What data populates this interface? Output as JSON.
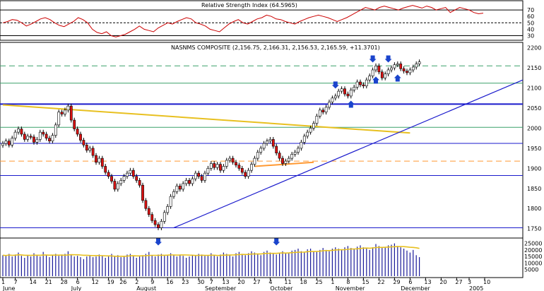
{
  "rsi": {
    "title": "Relative Strength Index (64.5965)",
    "levels": [
      70,
      50,
      30
    ],
    "ticks": [
      70,
      60,
      50,
      40,
      30
    ],
    "values": [
      50,
      52,
      55,
      54,
      50,
      45,
      48,
      52,
      56,
      58,
      55,
      50,
      46,
      44,
      48,
      52,
      58,
      55,
      50,
      40,
      35,
      33,
      36,
      30,
      28,
      30,
      32,
      36,
      40,
      45,
      40,
      38,
      36,
      42,
      46,
      50,
      48,
      52,
      55,
      58,
      56,
      50,
      48,
      45,
      40,
      38,
      36,
      42,
      48,
      52,
      55,
      50,
      48,
      52,
      56,
      58,
      62,
      60,
      56,
      55,
      52,
      50,
      48,
      52,
      55,
      58,
      60,
      62,
      60,
      58,
      55,
      52,
      55,
      58,
      62,
      66,
      70,
      74,
      72,
      70,
      74,
      76,
      74,
      72,
      70,
      73,
      75,
      77,
      75,
      73,
      76,
      74,
      70,
      72,
      74,
      66,
      70,
      74,
      72,
      70,
      66,
      64,
      65
    ]
  },
  "main": {
    "title": "NASNMS COMPOSITE (2,156.75, 2,166.31, 2,156.53, 2,165.59, +11.3701)",
    "ylim": [
      1730,
      2210
    ],
    "ticks": [
      2200,
      2150,
      2100,
      2050,
      2000,
      1950,
      1900,
      1850,
      1800,
      1750
    ],
    "hlines": [
      {
        "value": 2155,
        "color": "#3aa06a",
        "style": "dashed"
      },
      {
        "value": 2112,
        "color": "#3aa06a",
        "style": "solid"
      },
      {
        "value": 2060,
        "color": "#1a1acc",
        "style": "thick"
      },
      {
        "value": 2002,
        "color": "#3aa06a",
        "style": "solid"
      },
      {
        "value": 1962,
        "color": "#1a1acc",
        "style": "solid"
      },
      {
        "value": 1918,
        "color": "#ff9933",
        "style": "dashed"
      },
      {
        "value": 1882,
        "color": "#1a1acc",
        "style": "solid"
      },
      {
        "value": 1752,
        "color": "#1a1acc",
        "style": "solid"
      }
    ],
    "closes": [
      1962,
      1968,
      1958,
      1975,
      1990,
      1998,
      1985,
      1972,
      1980,
      1978,
      1965,
      1972,
      1990,
      1985,
      1975,
      1968,
      1982,
      2008,
      2040,
      2035,
      2045,
      2055,
      2020,
      1998,
      1985,
      1970,
      1958,
      1945,
      1950,
      1932,
      1915,
      1925,
      1905,
      1890,
      1880,
      1868,
      1848,
      1862,
      1870,
      1880,
      1888,
      1895,
      1880,
      1870,
      1858,
      1820,
      1800,
      1785,
      1770,
      1760,
      1752,
      1768,
      1790,
      1805,
      1830,
      1842,
      1856,
      1848,
      1862,
      1870,
      1862,
      1874,
      1888,
      1880,
      1870,
      1888,
      1900,
      1912,
      1902,
      1910,
      1895,
      1905,
      1920,
      1925,
      1915,
      1908,
      1900,
      1890,
      1880,
      1895,
      1910,
      1925,
      1940,
      1950,
      1962,
      1968,
      1972,
      1955,
      1938,
      1925,
      1912,
      1918,
      1925,
      1935,
      1940,
      1950,
      1965,
      1980,
      1990,
      2000,
      2012,
      2030,
      2045,
      2040,
      2052,
      2065,
      2075,
      2080,
      2092,
      2098,
      2085,
      2080,
      2095,
      2102,
      2115,
      2108,
      2105,
      2120,
      2130,
      2145,
      2155,
      2140,
      2125,
      2135,
      2145,
      2150,
      2158,
      2160,
      2148,
      2142,
      2138,
      2145,
      2152,
      2160,
      2165
    ],
    "green_trend": [
      [
        0,
        2058
      ],
      [
        131,
        1988
      ]
    ],
    "orange_short": [
      [
        81,
        1905
      ],
      [
        100,
        1915
      ]
    ],
    "arrows_down": [
      107,
      119,
      124
    ],
    "arrows_up": [
      112,
      120,
      127
    ]
  },
  "volume": {
    "ticks": [
      25000,
      20000,
      15000,
      10000,
      5000
    ],
    "ylim": [
      0,
      28000
    ],
    "values": [
      16000,
      15500,
      17000,
      15000,
      16500,
      18000,
      15500,
      14000,
      16000,
      15000,
      17500,
      16000,
      15000,
      18500,
      16000,
      14500,
      16000,
      17000,
      15500,
      16500,
      17000,
      19000,
      16000,
      15000,
      15500,
      14500,
      13000,
      15000,
      16000,
      14500,
      15000,
      16500,
      15500,
      14000,
      15000,
      17000,
      15500,
      16000,
      14500,
      15000,
      16500,
      17000,
      15500,
      14000,
      15000,
      16000,
      17000,
      18500,
      16000,
      15000,
      16500,
      17000,
      15500,
      16000,
      17500,
      16000,
      15000,
      16500,
      15500,
      14000,
      15000,
      16000,
      15500,
      17000,
      16500,
      15500,
      16000,
      17500,
      16000,
      15000,
      16500,
      18000,
      17000,
      16000,
      15000,
      17500,
      18500,
      17000,
      16000,
      17500,
      19000,
      18000,
      17000,
      16000,
      18500,
      19500,
      18000,
      17000,
      16500,
      18000,
      19000,
      17500,
      18000,
      19500,
      20000,
      21000,
      19000,
      18000,
      20500,
      21000,
      19000,
      18500,
      20000,
      21500,
      20000,
      19000,
      21000,
      22000,
      21000,
      20500,
      22000,
      23000,
      21500,
      21000,
      22500,
      23500,
      22000,
      21000,
      20000,
      22000,
      24500,
      23000,
      21500,
      22000,
      23500,
      24000,
      25000,
      23000,
      22000,
      21000,
      19500,
      18000,
      20000,
      16000,
      14500
    ],
    "arrows": [
      50,
      88
    ]
  },
  "xaxis": {
    "day_labels": [
      {
        "i": 0,
        "t": "1"
      },
      {
        "i": 4,
        "t": "7"
      },
      {
        "i": 9,
        "t": "14"
      },
      {
        "i": 14,
        "t": "21"
      },
      {
        "i": 19,
        "t": "28"
      },
      {
        "i": 24,
        "t": "6"
      },
      {
        "i": 29,
        "t": "12"
      },
      {
        "i": 34,
        "t": "19"
      },
      {
        "i": 38,
        "t": "26"
      },
      {
        "i": 43,
        "t": "2"
      },
      {
        "i": 48,
        "t": "9"
      },
      {
        "i": 53,
        "t": "16"
      },
      {
        "i": 58,
        "t": "23"
      },
      {
        "i": 63,
        "t": "30"
      },
      {
        "i": 67,
        "t": "7"
      },
      {
        "i": 71,
        "t": "13"
      },
      {
        "i": 76,
        "t": "20"
      },
      {
        "i": 81,
        "t": "27"
      },
      {
        "i": 86,
        "t": "4"
      },
      {
        "i": 91,
        "t": "11"
      },
      {
        "i": 96,
        "t": "18"
      },
      {
        "i": 101,
        "t": "25"
      },
      {
        "i": 106,
        "t": "1"
      },
      {
        "i": 111,
        "t": "8"
      },
      {
        "i": 116,
        "t": "15"
      },
      {
        "i": 121,
        "t": "22"
      },
      {
        "i": 126,
        "t": "29"
      },
      {
        "i": 131,
        "t": "6"
      },
      {
        "i": 136,
        "t": "13"
      },
      {
        "i": 141,
        "t": "20"
      },
      {
        "i": 146,
        "t": "27"
      },
      {
        "i": 150,
        "t": "3"
      },
      {
        "i": 155,
        "t": "10"
      }
    ],
    "month_labels": [
      {
        "i": 0,
        "t": "June"
      },
      {
        "i": 22,
        "t": "July"
      },
      {
        "i": 43,
        "t": "August"
      },
      {
        "i": 65,
        "t": "September"
      },
      {
        "i": 86,
        "t": "October"
      },
      {
        "i": 107,
        "t": "November"
      },
      {
        "i": 128,
        "t": "December"
      },
      {
        "i": 150,
        "t": "2005"
      }
    ]
  },
  "colors": {
    "up": "#ffffff",
    "down": "#dd1111",
    "rsi_line": "#cc0000",
    "volume_bar": "#1a1a99",
    "blue_lines": "#1a1acc",
    "trend_yellow": "#e8c020",
    "arrow": "#1a44cc"
  }
}
